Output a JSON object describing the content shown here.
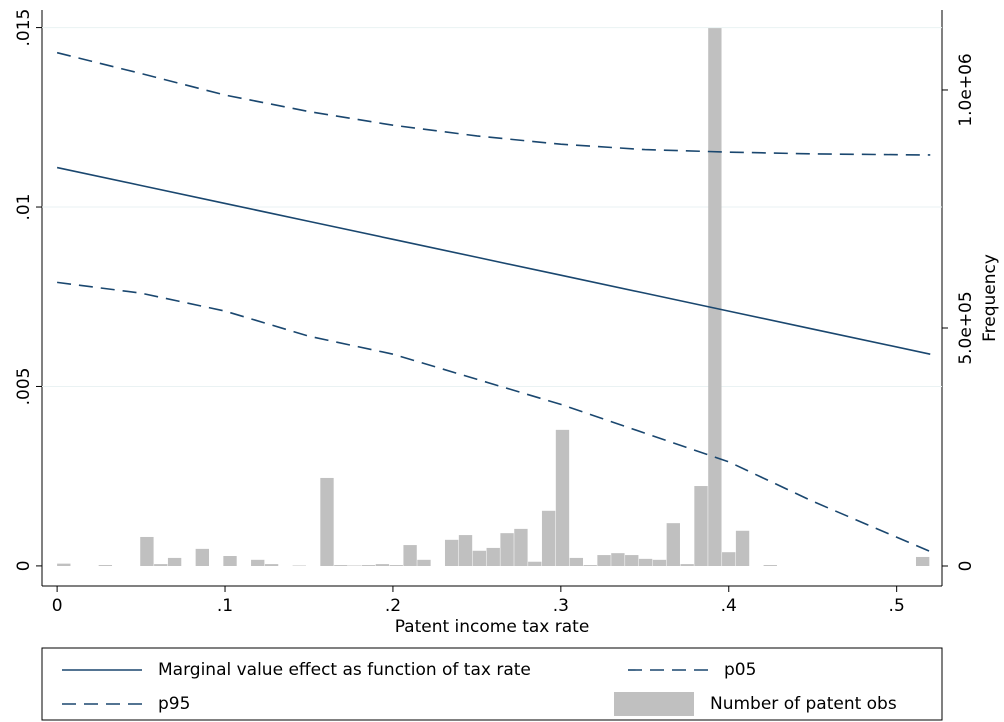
{
  "chart_data": {
    "type": "line",
    "x_label": "Patent income tax rate",
    "y2_label": "Frequency",
    "x": [
      0,
      0.05,
      0.1,
      0.15,
      0.2,
      0.25,
      0.3,
      0.35,
      0.4,
      0.45,
      0.52
    ],
    "series": [
      {
        "name": "Marginal value effect as function of tax rate",
        "color": "#1a476f",
        "dashed": false,
        "values": [
          0.0111,
          0.0106,
          0.0101,
          0.0096,
          0.0091,
          0.0086,
          0.0081,
          0.0076,
          0.0071,
          0.0066,
          0.0059
        ]
      },
      {
        "name": "p05",
        "color": "#1a476f",
        "dashed": true,
        "values": [
          0.0079,
          0.0076,
          0.0071,
          0.0064,
          0.0059,
          0.0052,
          0.0045,
          0.0037,
          0.0029,
          0.0018,
          0.0004
        ]
      },
      {
        "name": "p95",
        "color": "#1a476f",
        "dashed": true,
        "values": [
          0.0143,
          0.01372,
          0.01312,
          0.01266,
          0.01228,
          0.01198,
          0.01175,
          0.0116,
          0.01153,
          0.01148,
          0.01145
        ]
      }
    ],
    "histogram": {
      "name": "Number of patent obs",
      "color": "#c0c0c0",
      "axis": "y2",
      "bins": [
        0,
        0.00825,
        0.0165,
        0.02475,
        0.033,
        0.04125,
        0.0495,
        0.05775,
        0.066,
        0.07425,
        0.0825,
        0.09075,
        0.099,
        0.10725,
        0.1155,
        0.12375,
        0.132,
        0.14025,
        0.1485,
        0.15675,
        0.165,
        0.17325,
        0.1815,
        0.18975,
        0.198,
        0.20625,
        0.2145,
        0.22275,
        0.231,
        0.23925,
        0.2475,
        0.25575,
        0.264,
        0.27225,
        0.2805,
        0.28875,
        0.297,
        0.30525,
        0.3135,
        0.32175,
        0.33,
        0.33825,
        0.3465,
        0.35475,
        0.363,
        0.37125,
        0.3795,
        0.38775,
        0.396,
        0.40425,
        0.4125,
        0.42075,
        0.429,
        0.43725,
        0.4455,
        0.45375,
        0.462,
        0.47025,
        0.4785,
        0.48675,
        0.495,
        0.50325,
        0.5115,
        0.51975
      ],
      "counts": [
        5000,
        0,
        0,
        2000,
        0,
        0,
        61000,
        4000,
        17000,
        0,
        36000,
        0,
        21000,
        0,
        13000,
        4000,
        0,
        1000,
        0,
        185000,
        2000,
        1000,
        2000,
        4000,
        2000,
        44000,
        13000,
        0,
        55000,
        65000,
        32000,
        38000,
        69000,
        78000,
        9000,
        116000,
        286000,
        17000,
        2000,
        23000,
        27000,
        23000,
        15000,
        13000,
        90000,
        4000,
        168000,
        1130000,
        29000,
        74000,
        0,
        2000,
        0,
        0,
        0,
        0,
        0,
        0,
        0,
        0,
        0,
        0,
        19000
      ]
    },
    "xlim": [
      -0.009,
      0.527
    ],
    "xticks": [
      0,
      {
        "value": 0.1,
        "label": ".1"
      },
      {
        "value": 0.2,
        "label": ".2"
      },
      {
        "value": 0.3,
        "label": ".3"
      },
      {
        "value": 0.4,
        "label": ".4"
      },
      {
        "value": 0.5,
        "label": ".5"
      }
    ],
    "ylim": [
      -0.00056,
      0.01549
    ],
    "yticks": [
      0,
      {
        "value": 0.005,
        "label": ".005"
      },
      {
        "value": 0.01,
        "label": ".01"
      },
      {
        "value": 0.015,
        "label": ".015"
      }
    ],
    "y2lim": [
      -42000,
      1168000
    ],
    "y2ticks": [
      0,
      {
        "value": 500000,
        "label": "5.0e+05"
      },
      {
        "value": 1000000,
        "label": "1.0e+06"
      }
    ],
    "grid": true
  }
}
